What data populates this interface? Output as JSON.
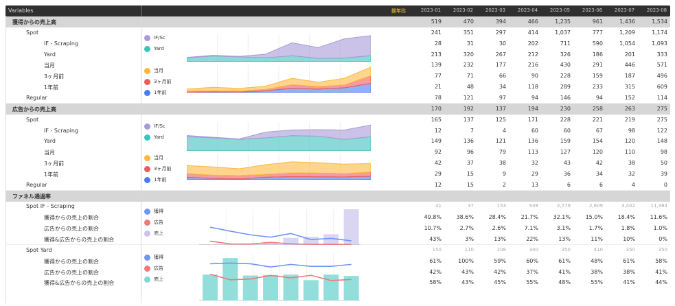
{
  "header": {
    "title": "Variables",
    "highlight": "前年比",
    "columns": [
      "2023-01",
      "2023-02",
      "2023-03",
      "2023-04",
      "2023-05",
      "2023-06",
      "2023-07",
      "2023-08"
    ]
  },
  "rows": [
    {
      "label": "獲得からの売上高",
      "indent": 0,
      "type": "sec",
      "values": [
        "519",
        "470",
        "394",
        "466",
        "1,235",
        "961",
        "1,436",
        "1,534"
      ]
    },
    {
      "label": "Spot",
      "indent": 1,
      "values": [
        "241",
        "351",
        "297",
        "414",
        "1,037",
        "777",
        "1,209",
        "1,174"
      ]
    },
    {
      "label": "IF - Scraping",
      "indent": 2,
      "values": [
        "28",
        "31",
        "30",
        "202",
        "711",
        "590",
        "1,054",
        "1,093"
      ]
    },
    {
      "label": "Yard",
      "indent": 2,
      "values": [
        "213",
        "320",
        "267",
        "212",
        "326",
        "186",
        "201",
        "333"
      ]
    },
    {
      "label": "当月",
      "indent": 2,
      "values": [
        "139",
        "232",
        "177",
        "216",
        "430",
        "291",
        "446",
        "571"
      ]
    },
    {
      "label": "3ヶ月前",
      "indent": 2,
      "values": [
        "77",
        "71",
        "66",
        "90",
        "228",
        "159",
        "187",
        "496"
      ]
    },
    {
      "label": "1年前",
      "indent": 2,
      "values": [
        "21",
        "48",
        "34",
        "118",
        "289",
        "233",
        "315",
        "609"
      ]
    },
    {
      "label": "Regular",
      "indent": 1,
      "values": [
        "78",
        "121",
        "97",
        "94",
        "146",
        "94",
        "152",
        "114"
      ]
    },
    {
      "label": "広告からの売上高",
      "indent": 0,
      "type": "sec",
      "values": [
        "170",
        "192",
        "137",
        "194",
        "230",
        "258",
        "263",
        "275"
      ]
    },
    {
      "label": "Spot",
      "indent": 1,
      "values": [
        "165",
        "137",
        "125",
        "171",
        "228",
        "221",
        "219",
        "275"
      ]
    },
    {
      "label": "IF - Scraping",
      "indent": 2,
      "values": [
        "12",
        "7",
        "4",
        "60",
        "60",
        "67",
        "98",
        "122"
      ]
    },
    {
      "label": "Yard",
      "indent": 2,
      "values": [
        "149",
        "136",
        "121",
        "136",
        "159",
        "154",
        "120",
        "148"
      ]
    },
    {
      "label": "当月",
      "indent": 2,
      "values": [
        "92",
        "96",
        "79",
        "113",
        "127",
        "120",
        "110",
        "98"
      ]
    },
    {
      "label": "3ヶ月前",
      "indent": 2,
      "values": [
        "42",
        "37",
        "38",
        "32",
        "43",
        "42",
        "38",
        "50"
      ]
    },
    {
      "label": "1年前",
      "indent": 2,
      "values": [
        "29",
        "15",
        "9",
        "29",
        "36",
        "34",
        "32",
        "39"
      ]
    },
    {
      "label": "Regular",
      "indent": 1,
      "values": [
        "12",
        "15",
        "2",
        "13",
        "6",
        "6",
        "4",
        "0"
      ]
    },
    {
      "label": "ファネル通過率",
      "indent": 0,
      "type": "sec",
      "values": [
        "",
        "",
        "",
        "",
        "",
        "",
        "",
        ""
      ]
    },
    {
      "label": "Spot IF - Scraping",
      "indent": 1,
      "type": "light",
      "values": [
        "41",
        "37",
        "153",
        "938",
        "2,279",
        "2,609",
        "3,402",
        "11,384"
      ]
    },
    {
      "label": "獲得からの売上の割合",
      "indent": 2,
      "values": [
        "49.8%",
        "38.6%",
        "28.4%",
        "21.7%",
        "32.1%",
        "15.0%",
        "18.4%",
        "11.6%"
      ]
    },
    {
      "label": "広告からの売上の割合",
      "indent": 2,
      "values": [
        "10.7%",
        "2.7%",
        "2.6%",
        "7.1%",
        "3.1%",
        "1.7%",
        "1.8%",
        "1.0%"
      ]
    },
    {
      "label": "獲得&広告からの売上の割合",
      "indent": 2,
      "values": [
        "43%",
        "3%",
        "13%",
        "22%",
        "13%",
        "11%",
        "10%",
        "0%"
      ]
    },
    {
      "label": "Spot Yard",
      "indent": 1,
      "type": "light",
      "values": [
        "150",
        "110",
        "208",
        "340",
        "350",
        "410",
        "350",
        "350"
      ]
    },
    {
      "label": "獲得からの売上の割合",
      "indent": 2,
      "values": [
        "61%",
        "100%",
        "59%",
        "60%",
        "61%",
        "48%",
        "61%",
        "58%"
      ]
    },
    {
      "label": "広告からの売上の割合",
      "indent": 2,
      "values": [
        "42%",
        "43%",
        "42%",
        "37%",
        "41%",
        "38%",
        "38%",
        "41%"
      ]
    },
    {
      "label": "獲得&広告からの売上の割合",
      "indent": 2,
      "values": [
        "58%",
        "43%",
        "45%",
        "55%",
        "48%",
        "55%",
        "41%",
        "44%"
      ]
    }
  ],
  "legends": {
    "a": [
      {
        "label": "IF/Sc",
        "color": "#a99ad8"
      },
      {
        "label": "Yard",
        "color": "#3cc3bd"
      }
    ],
    "b": [
      {
        "label": "当月",
        "color": "#ffb740"
      },
      {
        "label": "3ヶ月前",
        "color": "#ef5a5a"
      },
      {
        "label": "1年前",
        "color": "#4a7cf0"
      }
    ],
    "c": [
      {
        "label": "獲得",
        "color": "#6f96f2"
      },
      {
        "label": "広告",
        "color": "#ef7a7a"
      },
      {
        "label": "売上",
        "color": "#cbc3ea"
      }
    ],
    "d": [
      {
        "label": "獲得",
        "color": "#6f96f2"
      },
      {
        "label": "広告",
        "color": "#ef7a7a"
      },
      {
        "label": "売上",
        "color": "#7fd8d3"
      }
    ]
  }
}
